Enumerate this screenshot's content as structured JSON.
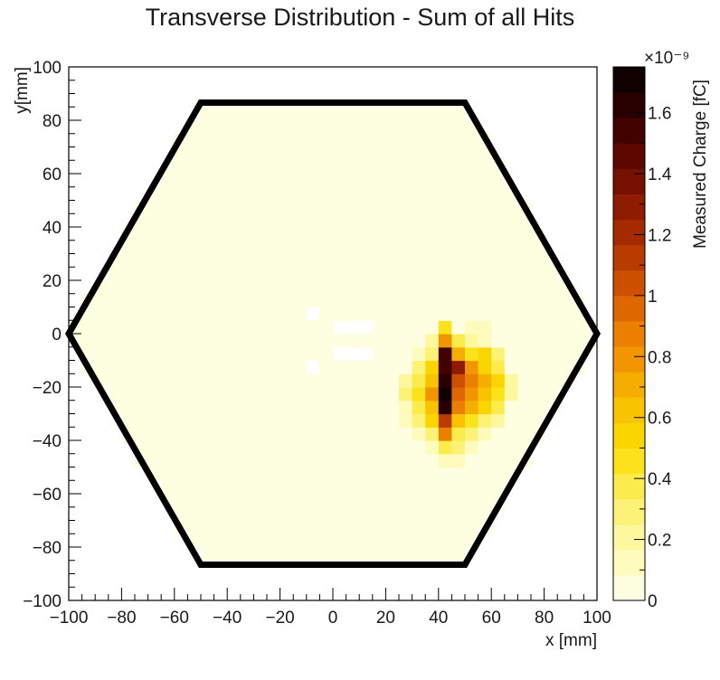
{
  "chart_data": {
    "type": "heatmap",
    "title": "Transverse Distribution - Sum of all Hits",
    "xlabel": "x [mm]",
    "ylabel": "y[mm]",
    "xlim": [
      -100,
      100
    ],
    "ylim": [
      -100,
      100
    ],
    "x_ticks": [
      "−100",
      "−80",
      "−60",
      "−40",
      "−20",
      "0",
      "20",
      "40",
      "60",
      "80",
      "100"
    ],
    "y_ticks": [
      "−100",
      "−80",
      "−60",
      "−40",
      "−20",
      "0",
      "20",
      "40",
      "60",
      "80",
      "100"
    ],
    "colorbar": {
      "label": "Measured Charge [fC]",
      "exponent": "×10⁻⁹",
      "range": [
        0,
        1.75
      ],
      "ticks": [
        "0",
        "0.2",
        "0.4",
        "0.6",
        "0.8",
        "1",
        "1.2",
        "1.4",
        "1.6"
      ],
      "tick_values": [
        0,
        0.2,
        0.4,
        0.6,
        0.8,
        1.0,
        1.2,
        1.4,
        1.6
      ],
      "palette": [
        "#fefee0",
        "#fefbbd",
        "#fdf79e",
        "#fcf277",
        "#fbeb4c",
        "#fbe21a",
        "#fbd500",
        "#f8c300",
        "#f5ad00",
        "#f19600",
        "#eb8000",
        "#de6700",
        "#cc5000",
        "#b83b00",
        "#a42a00",
        "#8e1c00",
        "#761000",
        "#5c0700",
        "#420200",
        "#280000",
        "#100000"
      ]
    },
    "hexagon_outline": [
      [
        -100,
        0
      ],
      [
        -50,
        86.6
      ],
      [
        50,
        86.6
      ],
      [
        100,
        0
      ],
      [
        50,
        -86.6
      ],
      [
        -50,
        -86.6
      ]
    ],
    "background_charge": 0.01,
    "hot_cells": [
      {
        "x": 45,
        "y": 5,
        "v": 0.45
      },
      {
        "x": 55,
        "y": 5,
        "v": 0.1
      },
      {
        "x": 60,
        "y": 5,
        "v": 0.1
      },
      {
        "x": 40,
        "y": 0,
        "v": 0.2
      },
      {
        "x": 45,
        "y": 0,
        "v": 0.8
      },
      {
        "x": 50,
        "y": 0,
        "v": 0.35
      },
      {
        "x": 55,
        "y": 0,
        "v": 0.2
      },
      {
        "x": 60,
        "y": 0,
        "v": 0.15
      },
      {
        "x": 35,
        "y": -5,
        "v": 0.1
      },
      {
        "x": 40,
        "y": -5,
        "v": 0.3
      },
      {
        "x": 45,
        "y": -5,
        "v": 1.55
      },
      {
        "x": 50,
        "y": -5,
        "v": 0.7
      },
      {
        "x": 55,
        "y": -5,
        "v": 0.45
      },
      {
        "x": 60,
        "y": -5,
        "v": 0.5
      },
      {
        "x": 65,
        "y": -5,
        "v": 0.25
      },
      {
        "x": 35,
        "y": -10,
        "v": 0.25
      },
      {
        "x": 40,
        "y": -10,
        "v": 0.55
      },
      {
        "x": 45,
        "y": -10,
        "v": 1.55
      },
      {
        "x": 50,
        "y": -10,
        "v": 1.3
      },
      {
        "x": 55,
        "y": -10,
        "v": 0.75
      },
      {
        "x": 60,
        "y": -10,
        "v": 0.55
      },
      {
        "x": 65,
        "y": -10,
        "v": 0.35
      },
      {
        "x": 30,
        "y": -15,
        "v": 0.2
      },
      {
        "x": 35,
        "y": -15,
        "v": 0.4
      },
      {
        "x": 40,
        "y": -15,
        "v": 0.65
      },
      {
        "x": 45,
        "y": -15,
        "v": 1.65
      },
      {
        "x": 50,
        "y": -15,
        "v": 1.05
      },
      {
        "x": 55,
        "y": -15,
        "v": 0.85
      },
      {
        "x": 60,
        "y": -15,
        "v": 0.7
      },
      {
        "x": 65,
        "y": -15,
        "v": 0.5
      },
      {
        "x": 70,
        "y": -15,
        "v": 0.2
      },
      {
        "x": 30,
        "y": -20,
        "v": 0.25
      },
      {
        "x": 35,
        "y": -20,
        "v": 0.45
      },
      {
        "x": 40,
        "y": -20,
        "v": 0.75
      },
      {
        "x": 45,
        "y": -20,
        "v": 1.75
      },
      {
        "x": 50,
        "y": -20,
        "v": 0.95
      },
      {
        "x": 55,
        "y": -20,
        "v": 0.8
      },
      {
        "x": 60,
        "y": -20,
        "v": 0.6
      },
      {
        "x": 65,
        "y": -20,
        "v": 0.45
      },
      {
        "x": 70,
        "y": -20,
        "v": 0.2
      },
      {
        "x": 30,
        "y": -25,
        "v": 0.15
      },
      {
        "x": 35,
        "y": -25,
        "v": 0.35
      },
      {
        "x": 40,
        "y": -25,
        "v": 0.6
      },
      {
        "x": 45,
        "y": -25,
        "v": 1.6
      },
      {
        "x": 50,
        "y": -25,
        "v": 0.85
      },
      {
        "x": 55,
        "y": -25,
        "v": 0.7
      },
      {
        "x": 60,
        "y": -25,
        "v": 0.5
      },
      {
        "x": 65,
        "y": -25,
        "v": 0.35
      },
      {
        "x": 30,
        "y": -30,
        "v": 0.1
      },
      {
        "x": 35,
        "y": -30,
        "v": 0.25
      },
      {
        "x": 40,
        "y": -30,
        "v": 0.5
      },
      {
        "x": 45,
        "y": -30,
        "v": 1.15
      },
      {
        "x": 50,
        "y": -30,
        "v": 0.65
      },
      {
        "x": 55,
        "y": -30,
        "v": 0.45
      },
      {
        "x": 60,
        "y": -30,
        "v": 0.3
      },
      {
        "x": 65,
        "y": -30,
        "v": 0.2
      },
      {
        "x": 35,
        "y": -35,
        "v": 0.15
      },
      {
        "x": 40,
        "y": -35,
        "v": 0.3
      },
      {
        "x": 45,
        "y": -35,
        "v": 0.9
      },
      {
        "x": 50,
        "y": -35,
        "v": 0.4
      },
      {
        "x": 55,
        "y": -35,
        "v": 0.3
      },
      {
        "x": 60,
        "y": -35,
        "v": 0.15
      },
      {
        "x": 40,
        "y": -40,
        "v": 0.15
      },
      {
        "x": 45,
        "y": -40,
        "v": 0.4
      },
      {
        "x": 50,
        "y": -40,
        "v": 0.25
      },
      {
        "x": 55,
        "y": -40,
        "v": 0.1
      },
      {
        "x": 45,
        "y": -45,
        "v": 0.15
      },
      {
        "x": 50,
        "y": -45,
        "v": 0.1
      }
    ],
    "empty_cells": [
      {
        "x": -5,
        "y": 10
      },
      {
        "x": 5,
        "y": 5
      },
      {
        "x": 10,
        "y": 5
      },
      {
        "x": 15,
        "y": 5
      },
      {
        "x": 5,
        "y": -5
      },
      {
        "x": 10,
        "y": -5
      },
      {
        "x": 15,
        "y": -5
      },
      {
        "x": -5,
        "y": -10
      }
    ]
  }
}
